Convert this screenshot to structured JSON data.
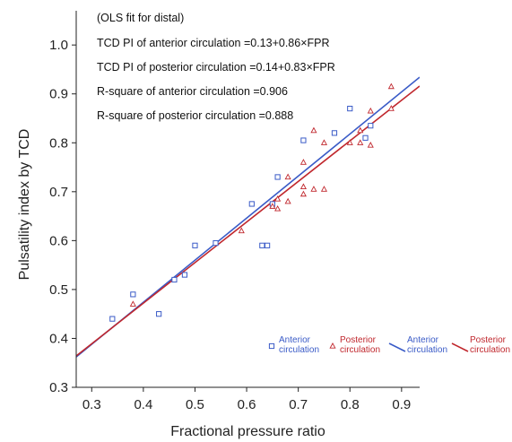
{
  "chart_data": {
    "type": "scatter",
    "xlabel": "Fractional pressure ratio",
    "ylabel": "Pulsatility index by TCD",
    "xlim": [
      0.27,
      0.935
    ],
    "ylim": [
      0.3,
      1.07
    ],
    "x_ticks": [
      "0.3",
      "0.4",
      "0.5",
      "0.6",
      "0.7",
      "0.8",
      "0.9"
    ],
    "y_ticks": [
      "0.3",
      "0.4",
      "0.5",
      "0.6",
      "0.7",
      "0.8",
      "0.9",
      "1.0"
    ],
    "grid": false,
    "legend_position": "bottom-right",
    "annotations": [
      "(OLS fit for distal)",
      "TCD PI of anterior circulation =0.13+0.86×FPR",
      "TCD PI of posterior circulation =0.14+0.83×FPR",
      "R-square of anterior circulation =0.906",
      "R-square of posterior circulation =0.888"
    ],
    "legend": [
      {
        "label_lines": [
          "Anterior",
          "circulation"
        ],
        "color": "#3a5bc7",
        "kind": "marker-square"
      },
      {
        "label_lines": [
          "Posterior",
          "circulation"
        ],
        "color": "#c0272d",
        "kind": "marker-triangle"
      },
      {
        "label_lines": [
          "Anterior",
          "circulation"
        ],
        "color": "#3a5bc7",
        "kind": "line"
      },
      {
        "label_lines": [
          "Posterior",
          "circulation"
        ],
        "color": "#c0272d",
        "kind": "line"
      }
    ],
    "series": [
      {
        "marker": "square",
        "color": "#3a5bc7",
        "points": [
          [
            0.34,
            0.44
          ],
          [
            0.38,
            0.49
          ],
          [
            0.43,
            0.45
          ],
          [
            0.46,
            0.52
          ],
          [
            0.48,
            0.53
          ],
          [
            0.5,
            0.59
          ],
          [
            0.54,
            0.595
          ],
          [
            0.61,
            0.675
          ],
          [
            0.63,
            0.59
          ],
          [
            0.64,
            0.59
          ],
          [
            0.65,
            0.675
          ],
          [
            0.66,
            0.73
          ],
          [
            0.71,
            0.805
          ],
          [
            0.77,
            0.82
          ],
          [
            0.8,
            0.87
          ],
          [
            0.83,
            0.81
          ],
          [
            0.84,
            0.835
          ]
        ]
      },
      {
        "marker": "triangle",
        "color": "#c0272d",
        "points": [
          [
            0.38,
            0.47
          ],
          [
            0.59,
            0.62
          ],
          [
            0.65,
            0.67
          ],
          [
            0.66,
            0.665
          ],
          [
            0.66,
            0.685
          ],
          [
            0.68,
            0.68
          ],
          [
            0.68,
            0.73
          ],
          [
            0.71,
            0.695
          ],
          [
            0.71,
            0.71
          ],
          [
            0.71,
            0.76
          ],
          [
            0.73,
            0.705
          ],
          [
            0.73,
            0.825
          ],
          [
            0.75,
            0.705
          ],
          [
            0.75,
            0.8
          ],
          [
            0.8,
            0.8
          ],
          [
            0.82,
            0.8
          ],
          [
            0.82,
            0.825
          ],
          [
            0.84,
            0.795
          ],
          [
            0.84,
            0.865
          ],
          [
            0.88,
            0.87
          ],
          [
            0.88,
            0.915
          ]
        ]
      }
    ],
    "fit_lines": [
      {
        "color": "#3a5bc7",
        "intercept": 0.13,
        "slope": 0.86,
        "x_range": [
          0.27,
          0.935
        ]
      },
      {
        "color": "#c0272d",
        "intercept": 0.14,
        "slope": 0.83,
        "x_range": [
          0.27,
          0.935
        ]
      }
    ]
  }
}
